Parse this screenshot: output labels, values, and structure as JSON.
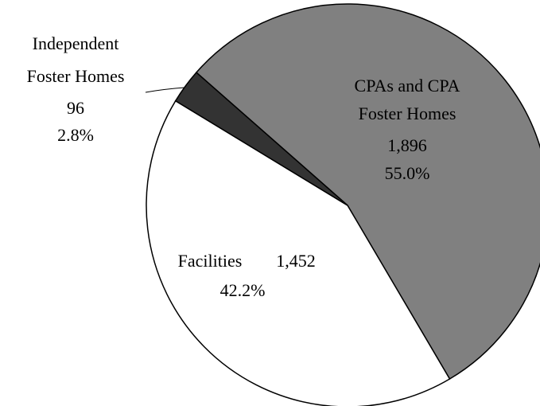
{
  "chart_data": {
    "type": "pie",
    "categories": [
      [
        "CPAs and CPA",
        "Foster Homes"
      ],
      [
        "Facilities"
      ],
      [
        "Independent",
        "Foster Homes"
      ]
    ],
    "values": [
      1896,
      1452,
      96
    ],
    "value_labels": [
      "1,896",
      "1,452",
      "96"
    ],
    "percentages": [
      55.0,
      42.2,
      2.8
    ],
    "percent_labels": [
      "55.0%",
      "42.2%",
      "2.8%"
    ],
    "colors": [
      "#808080",
      "#ffffff",
      "#333333"
    ]
  }
}
